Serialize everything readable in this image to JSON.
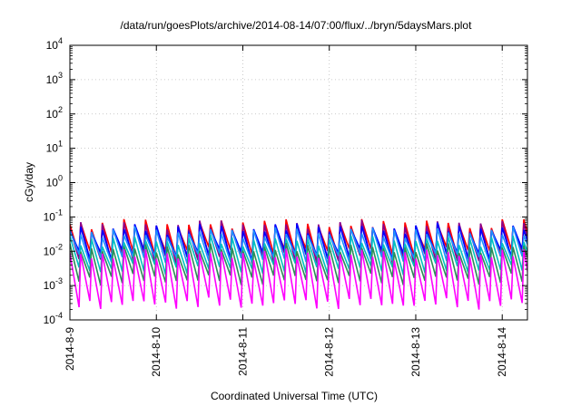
{
  "chart_data": {
    "type": "line",
    "title": "/data/run/goesPlots/archive/2014-08-14/07:00/flux/../bryn/5daysMars.plot",
    "xlabel": "Coordinated Universal Time (UTC)",
    "ylabel": "cGy/day",
    "x_ticks": [
      "2014-8-9",
      "2014-8-10",
      "2014-8-11",
      "2014-8-12",
      "2014-8-13",
      "2014-8-14"
    ],
    "x_range": [
      "2014-08-09T00:00",
      "2014-08-14T07:00"
    ],
    "y_scale": "log",
    "ylim": [
      0.0001,
      10000
    ],
    "y_ticks": [
      {
        "base": "10",
        "exp": "-4"
      },
      {
        "base": "10",
        "exp": "-3"
      },
      {
        "base": "10",
        "exp": "-2"
      },
      {
        "base": "10",
        "exp": "-1"
      },
      {
        "base": "10",
        "exp": "0"
      },
      {
        "base": "10",
        "exp": "1"
      },
      {
        "base": "10",
        "exp": "2"
      },
      {
        "base": "10",
        "exp": "3"
      },
      {
        "base": "10",
        "exp": "4"
      }
    ],
    "grid": true,
    "oscillation_period_hours": 3,
    "series": [
      {
        "color": "#ff0000",
        "peak": 0.06,
        "trough": 0.009
      },
      {
        "color": "#8b008b",
        "peak": 0.055,
        "trough": 0.006
      },
      {
        "color": "#0000ff",
        "peak": 0.045,
        "trough": 0.008
      },
      {
        "color": "#1e90ff",
        "peak": 0.035,
        "trough": 0.006
      },
      {
        "color": "#00c0c0",
        "peak": 0.02,
        "trough": 0.003
      },
      {
        "color": "#2e8b57",
        "peak": 0.012,
        "trough": 0.0015
      },
      {
        "color": "#ff00ff",
        "peak": 0.008,
        "trough": 0.0003
      }
    ]
  }
}
